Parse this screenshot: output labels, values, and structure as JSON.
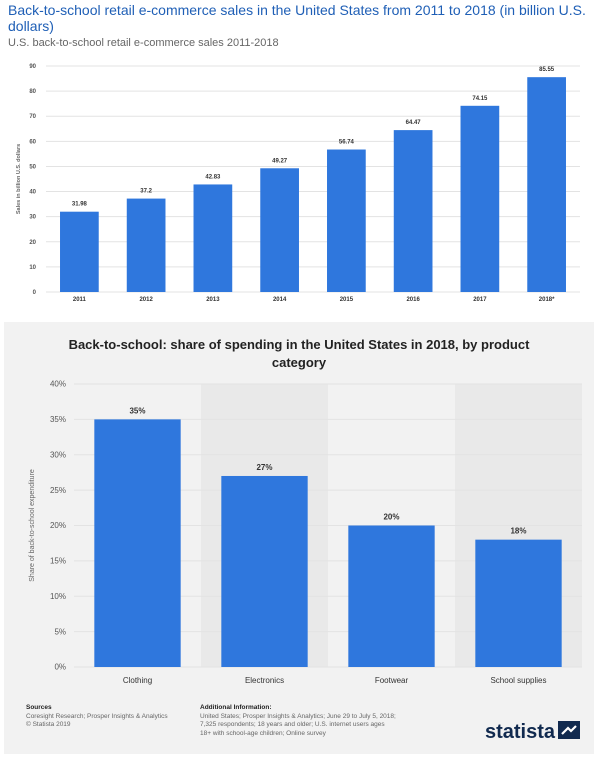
{
  "header": {
    "title": "Back-to-school retail e-commerce sales in the United States from 2011 to 2018 (in billion U.S. dollars)",
    "subtitle": "U.S. back-to-school retail e-commerce sales 2011-2018"
  },
  "chart2_title": "Back-to-school: share of spending in the United States in 2018, by product category",
  "footer": {
    "sources_heading": "Sources",
    "sources_lines": [
      "Coresight Research; Prosper Insights & Analytics",
      "© Statista 2019"
    ],
    "additional_heading": "Additional Information:",
    "additional_lines": [
      "United States; Prosper Insights & Analytics; June 29 to July 5, 2018;",
      "7,325 respondents; 18 years and older; U.S. internet users ages",
      "18+ with school-age children; Online survey"
    ],
    "logo_text": "statista",
    "logo_icon": "statista-logo-icon"
  },
  "colors": {
    "bar": "#2f77dd",
    "grid": "#e3e3e3",
    "axis_text": "#333333"
  },
  "chart_data": [
    {
      "type": "bar",
      "title": "Back-to-school retail e-commerce sales in the United States from 2011 to 2018 (in billion U.S. dollars)",
      "subtitle": "U.S. back-to-school retail e-commerce sales 2011-2018",
      "categories": [
        "2011",
        "2012",
        "2013",
        "2014",
        "2015",
        "2016",
        "2017",
        "2018*"
      ],
      "values": [
        31.98,
        37.2,
        42.83,
        49.27,
        56.74,
        64.47,
        74.15,
        85.55
      ],
      "data_labels": [
        "31.98",
        "37.2",
        "42.83",
        "49.27",
        "56.74",
        "64.47",
        "74.15",
        "85.55"
      ],
      "ylabel": "Sales in billion U.S. dollars",
      "xlabel": "",
      "ylim": [
        0,
        90
      ],
      "yticks": [
        0,
        10,
        20,
        30,
        40,
        50,
        60,
        70,
        80,
        90
      ],
      "ytick_labels": [
        "0",
        "10",
        "20",
        "30",
        "40",
        "50",
        "60",
        "70",
        "80",
        "90"
      ],
      "grid": true
    },
    {
      "type": "bar",
      "title": "Back-to-school: share of spending in the United States in 2018, by product category",
      "categories": [
        "Clothing",
        "Electronics",
        "Footwear",
        "School supplies"
      ],
      "values": [
        35,
        27,
        20,
        18
      ],
      "data_labels": [
        "35%",
        "27%",
        "20%",
        "18%"
      ],
      "ylabel": "Share of back-to-school expenditure",
      "xlabel": "",
      "ylim": [
        0,
        40
      ],
      "yticks": [
        0,
        5,
        10,
        15,
        20,
        25,
        30,
        35,
        40
      ],
      "ytick_labels": [
        "0%",
        "5%",
        "10%",
        "15%",
        "20%",
        "25%",
        "30%",
        "35%",
        "40%"
      ],
      "grid": true
    }
  ]
}
